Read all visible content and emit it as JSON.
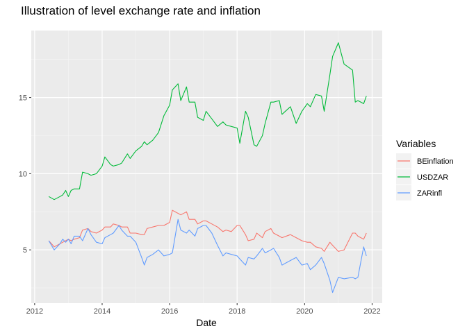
{
  "chart_data": {
    "type": "line",
    "title": "Illustration of level exchange rate and inflation",
    "xlabel": "Date",
    "ylabel": "",
    "xlim": [
      2011.9,
      2022.3
    ],
    "ylim": [
      1.5,
      19.4
    ],
    "x_ticks": [
      2012,
      2014,
      2016,
      2018,
      2020,
      2022
    ],
    "x_tick_labels": [
      "2012",
      "2014",
      "2016",
      "2018",
      "2020",
      "2022"
    ],
    "y_ticks": [
      5,
      10,
      15
    ],
    "y_tick_labels": [
      "5",
      "10",
      "15"
    ],
    "legend": {
      "title": "Variables",
      "position": "right"
    },
    "series": [
      {
        "name": "BEinflation",
        "color": "#F8766D",
        "points": [
          [
            2012.42,
            5.6
          ],
          [
            2012.58,
            5.2
          ],
          [
            2012.75,
            5.4
          ],
          [
            2012.83,
            5.5
          ],
          [
            2012.92,
            5.6
          ],
          [
            2013.0,
            5.7
          ],
          [
            2013.08,
            5.6
          ],
          [
            2013.17,
            5.7
          ],
          [
            2013.33,
            5.8
          ],
          [
            2013.42,
            6.3
          ],
          [
            2013.58,
            6.4
          ],
          [
            2013.67,
            6.2
          ],
          [
            2013.83,
            6.1
          ],
          [
            2014.0,
            6.3
          ],
          [
            2014.08,
            6.5
          ],
          [
            2014.25,
            6.5
          ],
          [
            2014.33,
            6.7
          ],
          [
            2014.5,
            6.6
          ],
          [
            2014.58,
            6.5
          ],
          [
            2014.75,
            6.5
          ],
          [
            2014.83,
            6.1
          ],
          [
            2015.0,
            6.1
          ],
          [
            2015.17,
            6.0
          ],
          [
            2015.25,
            6.0
          ],
          [
            2015.33,
            6.4
          ],
          [
            2015.5,
            6.5
          ],
          [
            2015.67,
            6.6
          ],
          [
            2015.83,
            6.6
          ],
          [
            2016.0,
            6.8
          ],
          [
            2016.08,
            7.6
          ],
          [
            2016.25,
            7.4
          ],
          [
            2016.33,
            7.3
          ],
          [
            2016.5,
            7.5
          ],
          [
            2016.58,
            7.0
          ],
          [
            2016.75,
            7.0
          ],
          [
            2016.83,
            6.7
          ],
          [
            2017.0,
            6.9
          ],
          [
            2017.08,
            6.9
          ],
          [
            2017.25,
            6.7
          ],
          [
            2017.42,
            6.5
          ],
          [
            2017.58,
            6.2
          ],
          [
            2017.67,
            6.3
          ],
          [
            2017.83,
            6.2
          ],
          [
            2018.0,
            6.6
          ],
          [
            2018.08,
            6.6
          ],
          [
            2018.25,
            6.0
          ],
          [
            2018.33,
            5.6
          ],
          [
            2018.5,
            5.7
          ],
          [
            2018.58,
            6.1
          ],
          [
            2018.75,
            5.8
          ],
          [
            2018.83,
            6.2
          ],
          [
            2019.0,
            6.4
          ],
          [
            2019.08,
            6.1
          ],
          [
            2019.25,
            5.9
          ],
          [
            2019.33,
            5.8
          ],
          [
            2019.58,
            6.0
          ],
          [
            2019.75,
            5.8
          ],
          [
            2019.92,
            5.6
          ],
          [
            2020.08,
            5.5
          ],
          [
            2020.17,
            5.5
          ],
          [
            2020.33,
            5.2
          ],
          [
            2020.5,
            5.1
          ],
          [
            2020.58,
            4.9
          ],
          [
            2020.75,
            5.5
          ],
          [
            2020.83,
            5.3
          ],
          [
            2021.0,
            4.9
          ],
          [
            2021.17,
            5.0
          ],
          [
            2021.42,
            6.1
          ],
          [
            2021.5,
            6.1
          ],
          [
            2021.58,
            5.9
          ],
          [
            2021.75,
            5.7
          ],
          [
            2021.83,
            6.1
          ]
        ]
      },
      {
        "name": "USDZAR",
        "color": "#00BA38",
        "points": [
          [
            2012.42,
            8.5
          ],
          [
            2012.58,
            8.3
          ],
          [
            2012.75,
            8.5
          ],
          [
            2012.83,
            8.6
          ],
          [
            2012.92,
            8.9
          ],
          [
            2013.0,
            8.5
          ],
          [
            2013.08,
            8.9
          ],
          [
            2013.17,
            9.0
          ],
          [
            2013.33,
            9.0
          ],
          [
            2013.42,
            10.1
          ],
          [
            2013.58,
            10.0
          ],
          [
            2013.67,
            9.9
          ],
          [
            2013.83,
            10.0
          ],
          [
            2014.0,
            10.5
          ],
          [
            2014.08,
            11.1
          ],
          [
            2014.25,
            10.6
          ],
          [
            2014.33,
            10.5
          ],
          [
            2014.5,
            10.6
          ],
          [
            2014.58,
            10.7
          ],
          [
            2014.75,
            11.3
          ],
          [
            2014.83,
            11.0
          ],
          [
            2015.0,
            11.5
          ],
          [
            2015.17,
            11.8
          ],
          [
            2015.25,
            12.1
          ],
          [
            2015.33,
            11.9
          ],
          [
            2015.5,
            12.2
          ],
          [
            2015.67,
            12.7
          ],
          [
            2015.83,
            13.8
          ],
          [
            2016.0,
            14.5
          ],
          [
            2016.08,
            15.5
          ],
          [
            2016.25,
            15.9
          ],
          [
            2016.33,
            14.8
          ],
          [
            2016.5,
            15.7
          ],
          [
            2016.58,
            14.7
          ],
          [
            2016.75,
            14.7
          ],
          [
            2016.83,
            13.7
          ],
          [
            2017.0,
            13.5
          ],
          [
            2017.08,
            14.1
          ],
          [
            2017.25,
            13.6
          ],
          [
            2017.42,
            13.1
          ],
          [
            2017.58,
            13.4
          ],
          [
            2017.67,
            13.2
          ],
          [
            2017.83,
            13.1
          ],
          [
            2018.0,
            13.0
          ],
          [
            2018.08,
            12.0
          ],
          [
            2018.25,
            14.1
          ],
          [
            2018.33,
            13.7
          ],
          [
            2018.5,
            11.9
          ],
          [
            2018.58,
            11.8
          ],
          [
            2018.75,
            12.5
          ],
          [
            2018.83,
            13.3
          ],
          [
            2019.0,
            14.7
          ],
          [
            2019.08,
            14.7
          ],
          [
            2019.25,
            14.8
          ],
          [
            2019.33,
            13.9
          ],
          [
            2019.58,
            14.4
          ],
          [
            2019.75,
            13.3
          ],
          [
            2019.92,
            14.1
          ],
          [
            2020.08,
            14.6
          ],
          [
            2020.17,
            14.4
          ],
          [
            2020.33,
            15.2
          ],
          [
            2020.5,
            15.1
          ],
          [
            2020.58,
            14.1
          ],
          [
            2020.75,
            16.5
          ],
          [
            2020.83,
            17.7
          ],
          [
            2021.0,
            18.6
          ],
          [
            2021.17,
            17.2
          ],
          [
            2021.42,
            16.8
          ],
          [
            2021.5,
            14.7
          ],
          [
            2021.58,
            14.8
          ],
          [
            2021.75,
            14.6
          ],
          [
            2021.83,
            15.1
          ]
        ]
      },
      {
        "name": "ZARinfl",
        "color": "#619CFF",
        "points": [
          [
            2012.42,
            5.6
          ],
          [
            2012.58,
            5.0
          ],
          [
            2012.75,
            5.4
          ],
          [
            2012.83,
            5.7
          ],
          [
            2012.92,
            5.5
          ],
          [
            2013.0,
            5.7
          ],
          [
            2013.08,
            5.4
          ],
          [
            2013.17,
            5.9
          ],
          [
            2013.33,
            5.9
          ],
          [
            2013.42,
            5.6
          ],
          [
            2013.58,
            6.4
          ],
          [
            2013.67,
            6.0
          ],
          [
            2013.83,
            5.5
          ],
          [
            2014.0,
            5.4
          ],
          [
            2014.08,
            5.8
          ],
          [
            2014.25,
            6.0
          ],
          [
            2014.33,
            6.1
          ],
          [
            2014.5,
            6.6
          ],
          [
            2014.58,
            6.3
          ],
          [
            2014.75,
            5.9
          ],
          [
            2014.83,
            5.9
          ],
          [
            2015.0,
            5.5
          ],
          [
            2015.17,
            4.5
          ],
          [
            2015.25,
            4.0
          ],
          [
            2015.33,
            4.5
          ],
          [
            2015.5,
            4.7
          ],
          [
            2015.67,
            5.0
          ],
          [
            2015.83,
            4.6
          ],
          [
            2016.0,
            4.7
          ],
          [
            2016.08,
            4.8
          ],
          [
            2016.25,
            7.0
          ],
          [
            2016.33,
            6.3
          ],
          [
            2016.5,
            6.1
          ],
          [
            2016.58,
            6.3
          ],
          [
            2016.75,
            5.9
          ],
          [
            2016.83,
            6.4
          ],
          [
            2017.0,
            6.6
          ],
          [
            2017.08,
            6.6
          ],
          [
            2017.25,
            6.1
          ],
          [
            2017.42,
            5.3
          ],
          [
            2017.58,
            4.6
          ],
          [
            2017.67,
            4.8
          ],
          [
            2017.83,
            4.7
          ],
          [
            2018.0,
            4.6
          ],
          [
            2018.08,
            4.4
          ],
          [
            2018.25,
            4.0
          ],
          [
            2018.33,
            4.5
          ],
          [
            2018.5,
            4.4
          ],
          [
            2018.58,
            4.6
          ],
          [
            2018.75,
            5.1
          ],
          [
            2018.83,
            4.8
          ],
          [
            2019.0,
            5.0
          ],
          [
            2019.08,
            5.1
          ],
          [
            2019.25,
            4.5
          ],
          [
            2019.33,
            4.0
          ],
          [
            2019.58,
            4.3
          ],
          [
            2019.75,
            4.5
          ],
          [
            2019.92,
            4.0
          ],
          [
            2020.08,
            4.1
          ],
          [
            2020.17,
            3.7
          ],
          [
            2020.33,
            4.0
          ],
          [
            2020.5,
            4.5
          ],
          [
            2020.58,
            4.1
          ],
          [
            2020.75,
            3.0
          ],
          [
            2020.83,
            2.2
          ],
          [
            2021.0,
            3.2
          ],
          [
            2021.17,
            3.1
          ],
          [
            2021.42,
            3.2
          ],
          [
            2021.5,
            3.1
          ],
          [
            2021.58,
            3.2
          ],
          [
            2021.75,
            5.2
          ],
          [
            2021.83,
            4.6
          ]
        ]
      }
    ]
  }
}
